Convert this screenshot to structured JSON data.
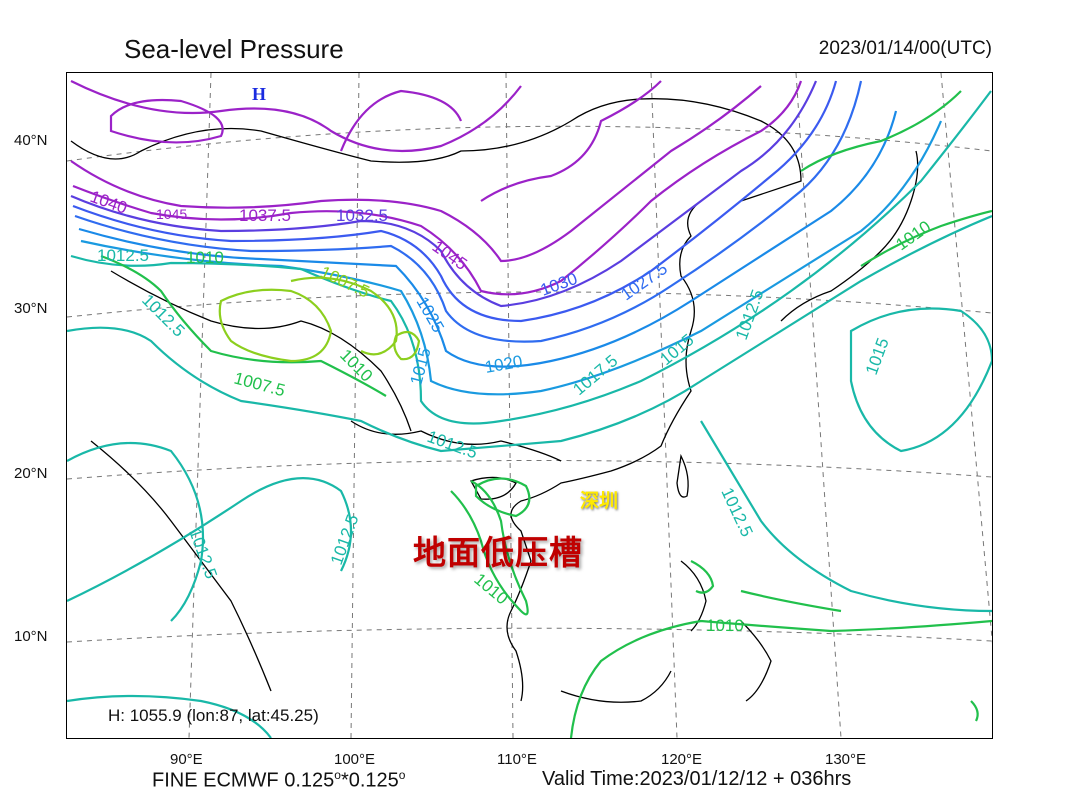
{
  "header": {
    "title": "Sea-level Pressure",
    "datetime": "2023/01/14/00(UTC)"
  },
  "axes": {
    "lat_labels": [
      "40°N",
      "30°N",
      "20°N",
      "10°N"
    ],
    "lon_labels": [
      "90°E",
      "100°E",
      "110°E",
      "120°E",
      "130°E"
    ]
  },
  "footer": {
    "model": "FINE ECMWF 0.125",
    "res_sep": "*0.125",
    "deg": "o",
    "valid": "Valid Time:2023/01/12/12 + 036hrs"
  },
  "high_info": "H: 1055.9 (lon:87, lat:45.25)",
  "high_marker": "H",
  "annotations": {
    "trough_label": "地面低压槽",
    "city_label": "深圳"
  },
  "contour_labels": [
    "1040",
    "1045",
    "1037.5",
    "1032.5",
    "1045",
    "1030",
    "1027.5",
    "1025",
    "1012.5",
    "1010",
    "1007.5",
    "1012.5",
    "1010",
    "1007.5",
    "1015",
    "1020",
    "1017.5",
    "1015",
    "1012.5",
    "1010",
    "1015",
    "1012.5",
    "1012.5",
    "1012.5",
    "1012.5",
    "1010",
    "1010"
  ],
  "colors": {
    "purple": "#9b22c8",
    "blue_violet": "#5a3ee0",
    "blue": "#2f6cf0",
    "cyan_blue": "#1a9ae0",
    "teal": "#19b8a8",
    "green": "#21c04c",
    "light_green": "#8ccf1e",
    "coast": "#000000",
    "grid": "#777777"
  }
}
